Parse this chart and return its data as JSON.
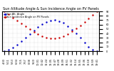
{
  "title": "Sun Altitude Angle & Sun Incidence Angle on PV Panels",
  "blue_label": "Sun Alt. Angle",
  "red_label": "Sun Incidence Angle on PV Panels",
  "x_times": [
    "4:30",
    "5:11",
    "5:53",
    "6:34",
    "7:15",
    "7:57",
    "8:38",
    "9:20",
    "10:01",
    "10:42",
    "11:24",
    "12:05",
    "12:47",
    "13:28",
    "14:09",
    "14:51",
    "15:32",
    "16:14",
    "16:55",
    "17:36",
    "18:18",
    "18:59",
    "19:41"
  ],
  "blue_values": [
    0,
    3,
    8,
    15,
    23,
    31,
    39,
    47,
    54,
    61,
    66,
    69,
    70,
    68,
    64,
    57,
    49,
    40,
    30,
    20,
    10,
    3,
    0
  ],
  "red_values": [
    90,
    83,
    76,
    69,
    62,
    56,
    50,
    44,
    39,
    34,
    31,
    29,
    29,
    31,
    34,
    39,
    45,
    51,
    58,
    66,
    74,
    82,
    90
  ],
  "ylim": [
    0,
    90
  ],
  "y_ticks": [
    0,
    10,
    20,
    30,
    40,
    50,
    60,
    70,
    80,
    90
  ],
  "background_color": "#ffffff",
  "blue_color": "#0000cc",
  "red_color": "#cc0000",
  "grid_color": "#bbbbbb",
  "title_fontsize": 3.5,
  "tick_fontsize": 2.5,
  "legend_fontsize": 2.5
}
